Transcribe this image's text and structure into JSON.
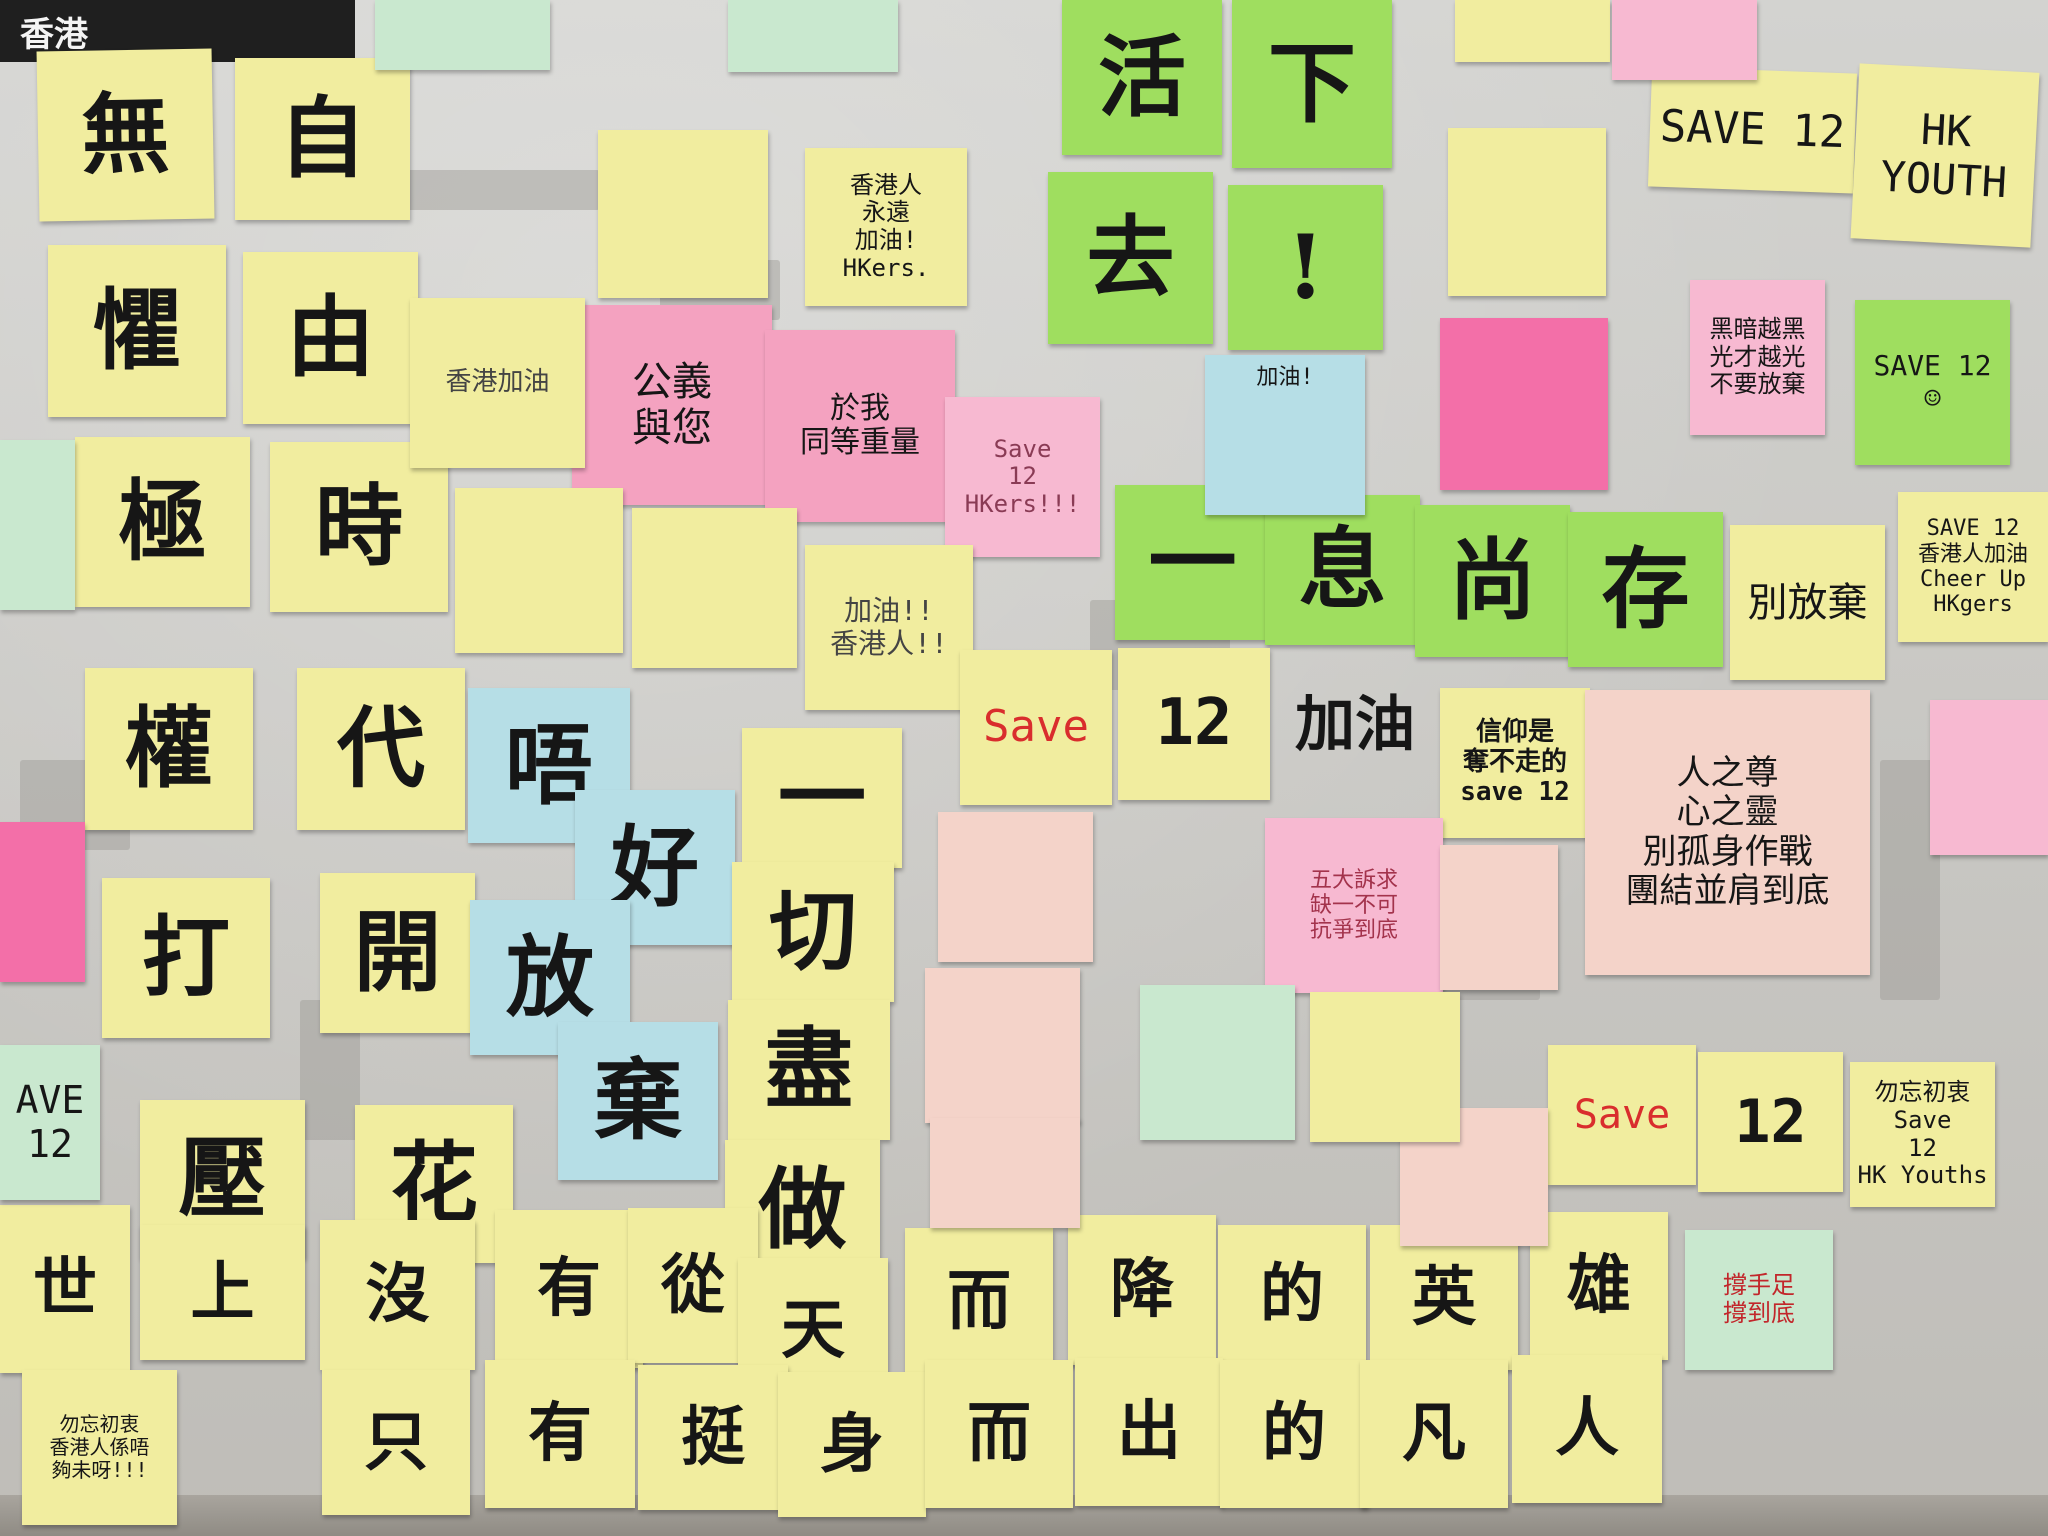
{
  "banner": {
    "text": "香港"
  },
  "notes": [
    {
      "id": "wu",
      "text": "無"
    },
    {
      "id": "ju",
      "text": "懼"
    },
    {
      "id": "ji",
      "text": "極"
    },
    {
      "id": "quan",
      "text": "權"
    },
    {
      "id": "da",
      "text": "打"
    },
    {
      "id": "ya",
      "text": "壓"
    },
    {
      "id": "zi",
      "text": "自"
    },
    {
      "id": "you",
      "text": "由"
    },
    {
      "id": "shi",
      "text": "時"
    },
    {
      "id": "dai",
      "text": "代"
    },
    {
      "id": "kai",
      "text": "開"
    },
    {
      "id": "hua",
      "text": "花"
    },
    {
      "id": "ng",
      "text": "唔"
    },
    {
      "id": "hou",
      "text": "好"
    },
    {
      "id": "fang",
      "text": "放"
    },
    {
      "id": "qi",
      "text": "棄"
    },
    {
      "id": "yi",
      "text": "一"
    },
    {
      "id": "qie",
      "text": "切"
    },
    {
      "id": "jin",
      "text": "盡"
    },
    {
      "id": "zuo",
      "text": "做"
    },
    {
      "id": "huo",
      "text": "活"
    },
    {
      "id": "xia",
      "text": "下"
    },
    {
      "id": "qu",
      "text": "去"
    },
    {
      "id": "excl",
      "text": "!"
    },
    {
      "id": "bottom1",
      "text": "世"
    },
    {
      "id": "bottom2",
      "text": "上"
    },
    {
      "id": "bottom3",
      "text": "沒"
    },
    {
      "id": "bottom4",
      "text": "有"
    },
    {
      "id": "bottom5",
      "text": "從"
    },
    {
      "id": "bottom6",
      "text": "天"
    },
    {
      "id": "bottom7",
      "text": "而"
    },
    {
      "id": "bottom8",
      "text": "降"
    },
    {
      "id": "bottom9",
      "text": "的"
    },
    {
      "id": "bottom10",
      "text": "英"
    },
    {
      "id": "bottom11",
      "text": "雄"
    },
    {
      "id": "last1",
      "text": "只"
    },
    {
      "id": "last2",
      "text": "有"
    },
    {
      "id": "last3",
      "text": "挺"
    },
    {
      "id": "last4",
      "text": "身"
    },
    {
      "id": "last5",
      "text": "而"
    },
    {
      "id": "last6",
      "text": "出"
    },
    {
      "id": "last7",
      "text": "的"
    },
    {
      "id": "last8",
      "text": "凡"
    },
    {
      "id": "last9",
      "text": "人"
    },
    {
      "id": "green1",
      "text": "一"
    },
    {
      "id": "green2",
      "text": "息"
    },
    {
      "id": "green3",
      "text": "尚"
    },
    {
      "id": "green4",
      "text": "存"
    },
    {
      "id": "gongyi",
      "text": "公義\n與您"
    },
    {
      "id": "yuwo",
      "text": "於我\n同等重量"
    },
    {
      "id": "save12a",
      "text": "Save\n12\nHKers!!!"
    },
    {
      "id": "hkjia",
      "text": "香港人\n永遠\n加油!\nHKers."
    },
    {
      "id": "hkjiayou",
      "text": "香港加油"
    },
    {
      "id": "jiayouhk",
      "text": "加油!!\n香港人!!"
    },
    {
      "id": "save_red",
      "text": "Save"
    },
    {
      "id": "twelve",
      "text": "12"
    },
    {
      "id": "jiayou_big",
      "text": "加油"
    },
    {
      "id": "xinyang",
      "text": "信仰是\n奪不走的\nsave 12"
    },
    {
      "id": "renzhi",
      "text": "人之尊\n心之靈\n別孤身作戰\n團結並肩到底"
    },
    {
      "id": "save12youth",
      "text": "SAVE 12"
    },
    {
      "id": "hkyouth",
      "text": "HK YOUTH"
    },
    {
      "id": "biefangqi",
      "text": "別放棄"
    },
    {
      "id": "save12green",
      "text": "SAVE 12\n☺"
    },
    {
      "id": "save12cheer",
      "text": "SAVE 12\n香港人加油\nCheer Up HKgers"
    },
    {
      "id": "heian",
      "text": "黑暗越黑\n光才越光\n不要放棄"
    },
    {
      "id": "save_red2",
      "text": "Save"
    },
    {
      "id": "twelve2",
      "text": "12"
    },
    {
      "id": "wuwang",
      "text": "勿忘初衷\nSave\n12\nHK Youths"
    },
    {
      "id": "chengshou",
      "text": "撐手足\n撐到底"
    },
    {
      "id": "wuda",
      "text": "五大訴求\n缺一不可\n抗爭到底"
    },
    {
      "id": "wuwang2",
      "text": "勿忘初衷\n香港人係唔\n夠未呀!!!"
    },
    {
      "id": "jiayou_blue",
      "text": "加油!"
    },
    {
      "id": "save12_side",
      "text": "AVE\n12"
    }
  ],
  "colors": {
    "wall": "#c9c8c4",
    "yellow": "#f1ed9f",
    "pink": "#f4a2c0",
    "green": "#9fde5f",
    "blue": "#b6dee6"
  }
}
